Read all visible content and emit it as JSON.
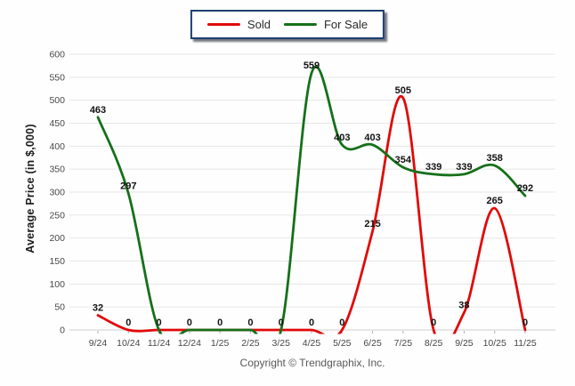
{
  "legend": {
    "items": [
      {
        "label": "Sold",
        "color": "#e10909"
      },
      {
        "label": "For Sale",
        "color": "#15701a"
      }
    ]
  },
  "chart_data": {
    "type": "line",
    "title": "",
    "categories": [
      "9/24",
      "10/24",
      "11/24",
      "12/24",
      "1/25",
      "2/25",
      "3/25",
      "4/25",
      "5/25",
      "6/25",
      "7/25",
      "8/25",
      "9/25",
      "10/25",
      "11/25"
    ],
    "series": [
      {
        "name": "Sold",
        "color": "#e10909",
        "values": [
          32,
          0,
          0,
          0,
          0,
          0,
          0,
          0,
          0,
          215,
          505,
          0,
          38,
          265,
          0
        ]
      },
      {
        "name": "For Sale",
        "color": "#15701a",
        "values": [
          463,
          297,
          0,
          0,
          0,
          0,
          0,
          559,
          403,
          403,
          354,
          339,
          339,
          358,
          292
        ]
      }
    ],
    "xlabel": "",
    "ylabel": "Average Price (in $,000)",
    "ylim": [
      0,
      600
    ],
    "ytick_step": 50,
    "grid": true,
    "legend_position": "top-center",
    "point_labels": true,
    "curve": "smooth",
    "colors": {
      "grid_line": "#e6e6e6",
      "zero_line": "#cfcfcf",
      "tick_text": "#474747",
      "point_label_text": "#121212"
    }
  },
  "footer": {
    "copyright": "Copyright © Trendgraphix, Inc."
  }
}
